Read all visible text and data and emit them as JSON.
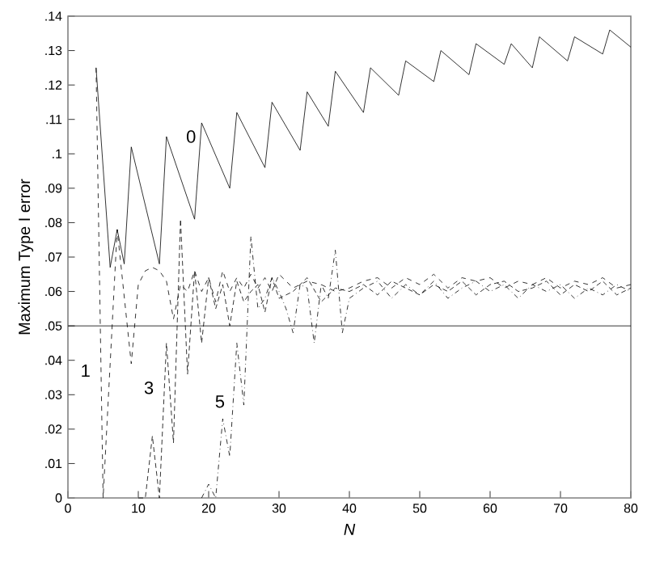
{
  "chart_data": {
    "type": "line",
    "xlabel": "N",
    "ylabel": "Maximum Type I error",
    "xlim": [
      0,
      80
    ],
    "ylim": [
      0,
      0.14
    ],
    "xticks": [
      0,
      10,
      20,
      30,
      40,
      50,
      60,
      70,
      80
    ],
    "yticks": [
      0,
      {
        "value": 0.01,
        "label": ".01"
      },
      {
        "value": 0.02,
        "label": ".02"
      },
      {
        "value": 0.03,
        "label": ".03"
      },
      {
        "value": 0.04,
        "label": ".04"
      },
      {
        "value": 0.05,
        "label": ".05"
      },
      {
        "value": 0.06,
        "label": ".06"
      },
      {
        "value": 0.07,
        "label": ".07"
      },
      {
        "value": 0.08,
        "label": ".08"
      },
      {
        "value": 0.09,
        "label": ".09"
      },
      {
        "value": 0.1,
        "label": ".1"
      },
      {
        "value": 0.11,
        "label": ".11"
      },
      {
        "value": 0.12,
        "label": ".12"
      },
      {
        "value": 0.13,
        "label": ".13"
      },
      {
        "value": 0.14,
        "label": ".14"
      }
    ],
    "grid": false,
    "legend": false,
    "marker": "none",
    "series": [
      {
        "name": "0",
        "color": "#000000",
        "line_style": "solid",
        "x": [
          4,
          6,
          7,
          8,
          9,
          13,
          14,
          18,
          19,
          23,
          24,
          28,
          29,
          33,
          34,
          37,
          38,
          42,
          43,
          47,
          48,
          52,
          53,
          57,
          58,
          62,
          63,
          66,
          67,
          71,
          72,
          76,
          77,
          80
        ],
        "values": [
          0.125,
          0.067,
          0.078,
          0.068,
          0.102,
          0.068,
          0.105,
          0.081,
          0.109,
          0.09,
          0.112,
          0.096,
          0.115,
          0.101,
          0.118,
          0.108,
          0.124,
          0.112,
          0.125,
          0.117,
          0.127,
          0.121,
          0.13,
          0.123,
          0.132,
          0.126,
          0.132,
          0.125,
          0.134,
          0.127,
          0.134,
          0.129,
          0.136,
          0.131
        ]
      },
      {
        "name": "1",
        "color": "#000000",
        "line_style": "dashed",
        "x": [
          4,
          5,
          7,
          9,
          10,
          11,
          12,
          13,
          14,
          15,
          16,
          17,
          18,
          19,
          20,
          21,
          22,
          23,
          24,
          25,
          26,
          27,
          28,
          29,
          30,
          32,
          34,
          36,
          38,
          40,
          42,
          44,
          46,
          48,
          50,
          52,
          54,
          56,
          58,
          60,
          62,
          64,
          66,
          68,
          70,
          72,
          74,
          76,
          78,
          80
        ],
        "values": [
          0.125,
          0,
          0.078,
          0.039,
          0.062,
          0.066,
          0.067,
          0.066,
          0.063,
          0.052,
          0.062,
          0.06,
          0.066,
          0.06,
          0.064,
          0.057,
          0.066,
          0.06,
          0.064,
          0.061,
          0.065,
          0.061,
          0.064,
          0.06,
          0.065,
          0.061,
          0.063,
          0.062,
          0.06,
          0.061,
          0.063,
          0.064,
          0.061,
          0.064,
          0.062,
          0.065,
          0.061,
          0.064,
          0.063,
          0.064,
          0.061,
          0.063,
          0.062,
          0.064,
          0.061,
          0.063,
          0.062,
          0.064,
          0.061,
          0.062
        ]
      },
      {
        "name": "3",
        "color": "#000000",
        "line_style": "dotted",
        "x": [
          10,
          11,
          12,
          13,
          14,
          15,
          16,
          17,
          18,
          19,
          20,
          21,
          22,
          23,
          24,
          25,
          26,
          27,
          28,
          29,
          30,
          32,
          34,
          36,
          38,
          40,
          42,
          44,
          46,
          48,
          50,
          52,
          54,
          56,
          58,
          60,
          62,
          64,
          66,
          68,
          70,
          72,
          74,
          76,
          78,
          80
        ],
        "values": [
          0,
          0,
          0.018,
          0,
          0.045,
          0.016,
          0.081,
          0.036,
          0.066,
          0.045,
          0.064,
          0.055,
          0.062,
          0.05,
          0.063,
          0.057,
          0.06,
          0.062,
          0.054,
          0.064,
          0.058,
          0.06,
          0.064,
          0.057,
          0.061,
          0.06,
          0.062,
          0.059,
          0.063,
          0.061,
          0.059,
          0.062,
          0.06,
          0.063,
          0.059,
          0.062,
          0.063,
          0.06,
          0.061,
          0.063,
          0.059,
          0.062,
          0.06,
          0.063,
          0.059,
          0.061
        ]
      },
      {
        "name": "5",
        "color": "#000000",
        "line_style": "dashdot",
        "x": [
          19,
          20,
          21,
          22,
          23,
          24,
          25,
          26,
          27,
          28,
          29,
          30,
          31,
          32,
          33,
          34,
          35,
          36,
          37,
          38,
          39,
          40,
          42,
          44,
          46,
          48,
          50,
          52,
          54,
          56,
          58,
          60,
          62,
          64,
          66,
          68,
          70,
          72,
          74,
          76,
          78,
          80
        ],
        "values": [
          0,
          0.004,
          0,
          0.023,
          0.012,
          0.045,
          0.027,
          0.076,
          0.055,
          0.058,
          0.064,
          0.06,
          0.055,
          0.048,
          0.062,
          0.061,
          0.045,
          0.062,
          0.058,
          0.072,
          0.048,
          0.058,
          0.061,
          0.063,
          0.058,
          0.062,
          0.059,
          0.063,
          0.058,
          0.061,
          0.063,
          0.06,
          0.062,
          0.058,
          0.062,
          0.06,
          0.062,
          0.058,
          0.061,
          0.059,
          0.062,
          0.06
        ]
      }
    ],
    "ref_lines": [
      {
        "axis": "y",
        "value": 0.05,
        "color": "#000000",
        "line_style": "solid"
      }
    ]
  }
}
